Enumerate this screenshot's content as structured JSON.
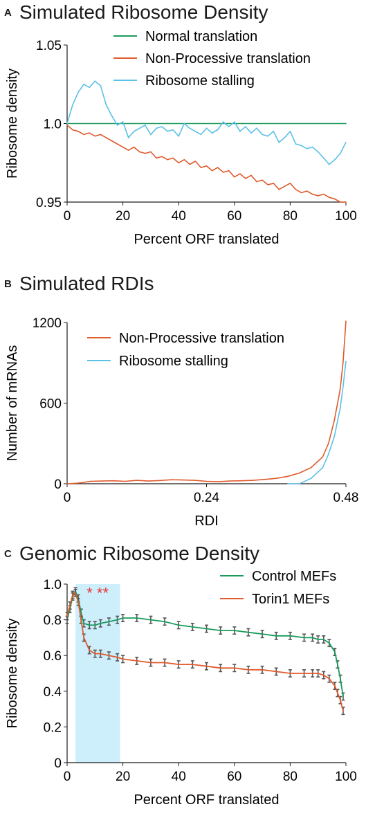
{
  "colors": {
    "normal": "#1a9b5c",
    "nonprocessive": "#e05a2b",
    "stalling": "#5bc0e6",
    "highlight": "#cdeefb",
    "error_bar": "#555555",
    "star": "#e83030",
    "axis": "#1a1a1a"
  },
  "panels": [
    {
      "letter": "A",
      "title": "Simulated Ribosome Density",
      "legend": [
        "Normal translation",
        "Non-Processive translation",
        "Ribosome stalling"
      ]
    },
    {
      "letter": "B",
      "title": "Simulated RDIs",
      "legend": [
        "Non-Processive translation",
        "Ribosome stalling"
      ]
    },
    {
      "letter": "C",
      "title": "Genomic Ribosome Density",
      "legend": [
        "Control MEFs",
        "Torin1 MEFs"
      ],
      "annotation": "* **"
    }
  ],
  "chart_data": [
    {
      "type": "line",
      "title": "Simulated Ribosome Density",
      "xlabel": "Percent ORF translated",
      "ylabel": "Ribosome density",
      "xlim": [
        0,
        100
      ],
      "ylim": [
        0.95,
        1.05
      ],
      "xticks": [
        0,
        20,
        40,
        60,
        80,
        100
      ],
      "yticks": [
        0.95,
        1.0,
        1.05
      ],
      "ytick_labels": [
        "0.95",
        "1.0",
        "1.05"
      ],
      "legend_position": "top-right",
      "grid": false,
      "series": [
        {
          "name": "Normal translation",
          "x": [
            0,
            100
          ],
          "y": [
            1.0,
            1.0
          ]
        },
        {
          "name": "Non-Processive translation",
          "x": [
            0,
            2,
            4,
            6,
            8,
            10,
            12,
            14,
            16,
            18,
            20,
            22,
            24,
            26,
            28,
            30,
            32,
            34,
            36,
            38,
            40,
            42,
            44,
            46,
            48,
            50,
            52,
            54,
            56,
            58,
            60,
            62,
            64,
            66,
            68,
            70,
            72,
            74,
            76,
            78,
            80,
            82,
            84,
            86,
            88,
            90,
            92,
            94,
            96,
            98,
            100
          ],
          "y": [
            0.999,
            0.996,
            0.995,
            0.993,
            0.994,
            0.992,
            0.993,
            0.991,
            0.989,
            0.987,
            0.985,
            0.983,
            0.985,
            0.982,
            0.981,
            0.982,
            0.978,
            0.979,
            0.977,
            0.978,
            0.975,
            0.977,
            0.974,
            0.976,
            0.972,
            0.973,
            0.97,
            0.972,
            0.969,
            0.97,
            0.966,
            0.968,
            0.965,
            0.967,
            0.963,
            0.964,
            0.961,
            0.962,
            0.958,
            0.96,
            0.962,
            0.958,
            0.956,
            0.957,
            0.955,
            0.954,
            0.955,
            0.953,
            0.952,
            0.95,
            0.95
          ]
        },
        {
          "name": "Ribosome stalling",
          "x": [
            0,
            2,
            4,
            6,
            8,
            10,
            12,
            14,
            16,
            18,
            20,
            22,
            24,
            26,
            28,
            30,
            32,
            34,
            36,
            38,
            40,
            42,
            44,
            46,
            48,
            50,
            52,
            54,
            56,
            58,
            60,
            62,
            64,
            66,
            68,
            70,
            72,
            74,
            76,
            78,
            80,
            82,
            84,
            86,
            88,
            90,
            92,
            94,
            96,
            98,
            100
          ],
          "y": [
            1.0,
            1.012,
            1.02,
            1.025,
            1.023,
            1.027,
            1.024,
            1.012,
            1.005,
            0.999,
            1.001,
            0.991,
            0.995,
            0.997,
            0.999,
            0.993,
            0.997,
            0.998,
            0.995,
            0.996,
            0.992,
            1.0,
            0.997,
            0.995,
            0.993,
            0.997,
            0.994,
            0.996,
            1.001,
            0.998,
            1.001,
            0.995,
            0.998,
            0.994,
            0.997,
            0.993,
            0.992,
            0.995,
            0.988,
            0.991,
            0.995,
            0.987,
            0.986,
            0.984,
            0.985,
            0.982,
            0.978,
            0.974,
            0.977,
            0.981,
            0.988
          ]
        }
      ]
    },
    {
      "type": "line",
      "title": "Simulated RDIs",
      "xlabel": "RDI",
      "ylabel": "Number of mRNAs",
      "xlim": [
        0,
        0.48
      ],
      "ylim": [
        0,
        1200
      ],
      "xticks": [
        0,
        0.24,
        0.48
      ],
      "xtick_labels": [
        "0",
        "0.24",
        "0.48"
      ],
      "yticks": [
        0,
        600,
        1200
      ],
      "legend_position": "top-left",
      "grid": false,
      "series": [
        {
          "name": "Non-Processive translation",
          "x": [
            0,
            0.02,
            0.04,
            0.06,
            0.08,
            0.1,
            0.12,
            0.14,
            0.16,
            0.18,
            0.2,
            0.22,
            0.24,
            0.26,
            0.28,
            0.3,
            0.32,
            0.34,
            0.36,
            0.38,
            0.4,
            0.42,
            0.44,
            0.45,
            0.46,
            0.47,
            0.475,
            0.48
          ],
          "y": [
            0,
            5,
            18,
            20,
            22,
            18,
            25,
            20,
            24,
            30,
            28,
            25,
            18,
            15,
            20,
            22,
            25,
            32,
            40,
            55,
            80,
            120,
            200,
            300,
            470,
            700,
            900,
            1210
          ]
        },
        {
          "name": "Ribosome stalling",
          "x": [
            0.38,
            0.4,
            0.42,
            0.44,
            0.45,
            0.46,
            0.47,
            0.475,
            0.48
          ],
          "y": [
            0,
            0,
            40,
            120,
            220,
            350,
            560,
            720,
            910
          ]
        }
      ]
    },
    {
      "type": "line",
      "title": "Genomic Ribosome Density",
      "xlabel": "Percent ORF translated",
      "ylabel": "Ribosome density",
      "xlim": [
        0,
        100
      ],
      "ylim": [
        0,
        1.0
      ],
      "xticks": [
        0,
        20,
        40,
        60,
        80,
        100
      ],
      "yticks": [
        0,
        0.2,
        0.4,
        0.6,
        0.8,
        1.0
      ],
      "ytick_labels": [
        "0",
        "0.2",
        "0.4",
        "0.6",
        "0.8",
        "1.0"
      ],
      "highlight_x": [
        3,
        19
      ],
      "annotation": "* **",
      "legend_position": "top-right",
      "grid": false,
      "series": [
        {
          "name": "Control MEFs",
          "x": [
            0,
            1,
            2,
            3,
            4,
            5,
            6,
            8,
            10,
            12,
            15,
            18,
            20,
            25,
            30,
            35,
            40,
            45,
            50,
            55,
            60,
            65,
            70,
            75,
            80,
            85,
            88,
            90,
            92,
            94,
            96,
            97,
            98,
            99
          ],
          "y": [
            0.8,
            0.86,
            0.93,
            0.96,
            0.92,
            0.84,
            0.78,
            0.77,
            0.77,
            0.78,
            0.79,
            0.8,
            0.81,
            0.81,
            0.8,
            0.79,
            0.77,
            0.76,
            0.75,
            0.74,
            0.74,
            0.73,
            0.72,
            0.71,
            0.71,
            0.7,
            0.7,
            0.69,
            0.69,
            0.67,
            0.62,
            0.55,
            0.47,
            0.37
          ]
        },
        {
          "name": "Torin1 MEFs",
          "x": [
            0,
            1,
            2,
            3,
            4,
            5,
            6,
            8,
            10,
            12,
            15,
            18,
            20,
            25,
            30,
            35,
            40,
            45,
            50,
            55,
            60,
            65,
            70,
            75,
            80,
            85,
            88,
            90,
            92,
            94,
            96,
            97,
            98,
            99
          ],
          "y": [
            0.82,
            0.88,
            0.94,
            0.95,
            0.9,
            0.8,
            0.7,
            0.63,
            0.61,
            0.61,
            0.6,
            0.59,
            0.58,
            0.57,
            0.56,
            0.56,
            0.55,
            0.55,
            0.54,
            0.53,
            0.53,
            0.52,
            0.52,
            0.51,
            0.5,
            0.5,
            0.5,
            0.5,
            0.49,
            0.47,
            0.43,
            0.39,
            0.35,
            0.29
          ]
        }
      ]
    }
  ]
}
